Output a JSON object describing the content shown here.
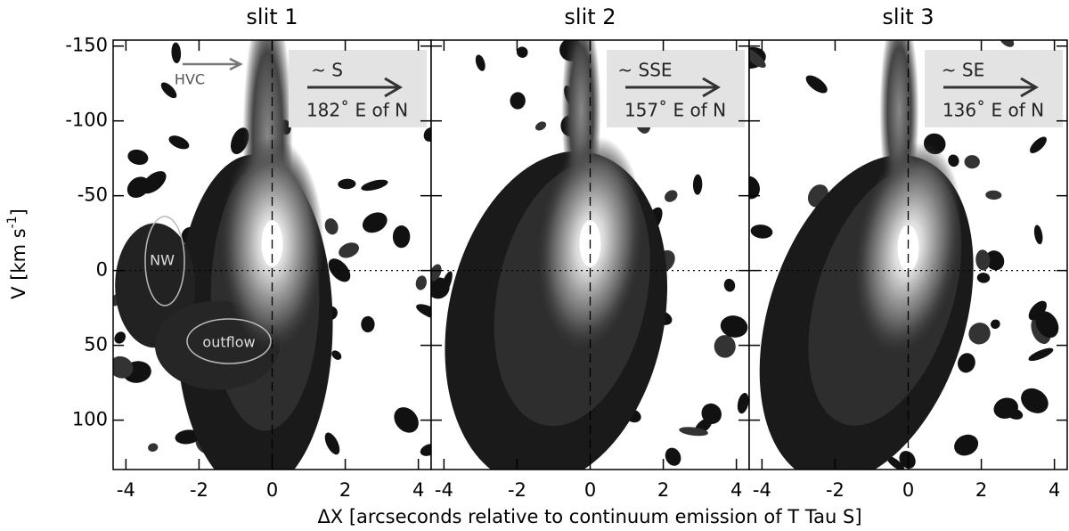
{
  "figure": {
    "xlabel": "ΔX [arcseconds relative to continuum emission of T Tau S]",
    "ylabel": [
      "V [km s",
      "-1",
      "]"
    ]
  },
  "chart_data": [
    {
      "type": "contour",
      "title": "slit 1",
      "direction": "~ S",
      "angle": "182˚ E of N",
      "annotations": [
        "HVC",
        "NW",
        "outflow"
      ],
      "xlim": [
        -4.35,
        4.35
      ],
      "xticks": [
        -4,
        -2,
        0,
        2,
        4
      ],
      "ylim": [
        -154,
        133
      ],
      "yticks": [
        -150,
        -100,
        -50,
        0,
        50,
        100
      ]
    },
    {
      "type": "contour",
      "title": "slit 2",
      "direction": "~ SSE",
      "angle": "157˚ E of N",
      "xlim": [
        -4.35,
        4.35
      ],
      "xticks": [
        -4,
        -2,
        0,
        2,
        4
      ],
      "ylim": [
        -154,
        133
      ],
      "yticks": [
        -150,
        -100,
        -50,
        0,
        50,
        100
      ]
    },
    {
      "type": "contour",
      "title": "slit 3",
      "direction": "~ SE",
      "angle": "136˚ E of N",
      "xlim": [
        -4.35,
        4.35
      ],
      "xticks": [
        -4,
        -2,
        0,
        2,
        4
      ],
      "ylim": [
        -154,
        133
      ],
      "yticks": [
        -150,
        -100,
        -50,
        0,
        50,
        100
      ]
    }
  ]
}
